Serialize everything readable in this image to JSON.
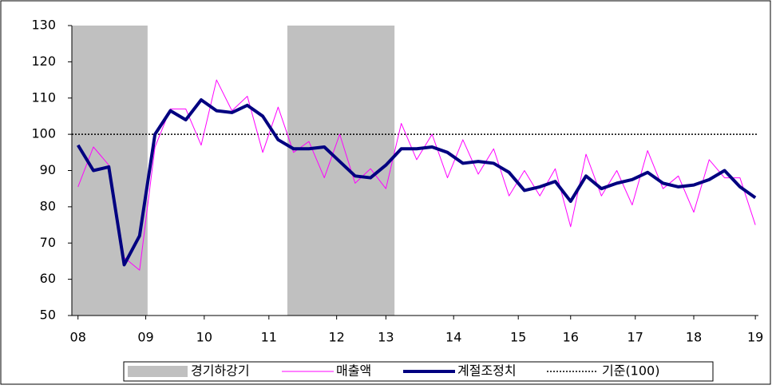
{
  "chart_data": {
    "type": "line",
    "x": [
      8.0,
      8.25,
      8.5,
      8.75,
      9.0,
      9.25,
      9.5,
      9.75,
      10.0,
      10.25,
      10.5,
      10.75,
      11.0,
      11.25,
      11.5,
      11.75,
      12.0,
      12.25,
      12.5,
      12.75,
      13.0,
      13.25,
      13.5,
      13.75,
      14.0,
      14.25,
      14.5,
      14.75,
      15.0,
      15.25,
      15.5,
      15.75,
      16.0,
      16.25,
      16.5,
      16.75,
      17.0,
      17.25,
      17.5,
      17.75,
      18.0,
      18.25,
      18.5,
      18.75,
      19.0
    ],
    "series": [
      {
        "name": "매출액",
        "color": "#ff00ff",
        "width": 1,
        "values": [
          85.5,
          96.5,
          91.5,
          66,
          62.5,
          96.5,
          107,
          107,
          97,
          115,
          106.5,
          110.5,
          95,
          107.5,
          95,
          98,
          88,
          100,
          86.5,
          90.5,
          85,
          103,
          93,
          100,
          88,
          98.5,
          89,
          96,
          83,
          90,
          83,
          90.5,
          74.5,
          94.5,
          83,
          90,
          80.5,
          95.5,
          85,
          88.5,
          78.5,
          93,
          88,
          88,
          75
        ]
      },
      {
        "name": "계절조정치",
        "color": "#000080",
        "width": 4,
        "values": [
          97,
          90,
          91,
          64,
          72,
          100,
          106.5,
          104,
          109.5,
          106.5,
          106,
          108,
          105,
          98.5,
          96,
          96,
          96.5,
          92.5,
          88.5,
          88,
          91.5,
          96,
          96,
          96.5,
          95,
          92,
          92.5,
          92,
          89.5,
          84.5,
          85.5,
          87,
          81.5,
          88.5,
          85,
          86.5,
          87.5,
          89.5,
          86.5,
          85.5,
          86,
          87.5,
          90,
          85.5,
          82.5
        ]
      }
    ],
    "shading": {
      "name": "경기하강기",
      "color": "#c0c0c0",
      "periods": [
        {
          "start": 7.9,
          "end": 9.13
        },
        {
          "start": 11.4,
          "end": 13.14
        }
      ]
    },
    "reference": {
      "name": "기준(100)",
      "value": 100,
      "color": "#000000"
    },
    "xlim": [
      7.9,
      19.05
    ],
    "xticks": [
      {
        "value": 8.0,
        "label": "08"
      },
      {
        "value": 9.1,
        "label": "09"
      },
      {
        "value": 10.05,
        "label": "10"
      },
      {
        "value": 11.1,
        "label": "11"
      },
      {
        "value": 12.2,
        "label": "12"
      },
      {
        "value": 13.0,
        "label": "13"
      },
      {
        "value": 14.1,
        "label": "14"
      },
      {
        "value": 15.15,
        "label": "15"
      },
      {
        "value": 16.0,
        "label": "16"
      },
      {
        "value": 17.05,
        "label": "17"
      },
      {
        "value": 18.0,
        "label": "18"
      },
      {
        "value": 19.0,
        "label": "19"
      }
    ],
    "ylim": [
      50,
      130
    ],
    "yticks": [
      50,
      60,
      70,
      80,
      90,
      100,
      110,
      120,
      130
    ],
    "grid": false,
    "legend": "bottom"
  }
}
